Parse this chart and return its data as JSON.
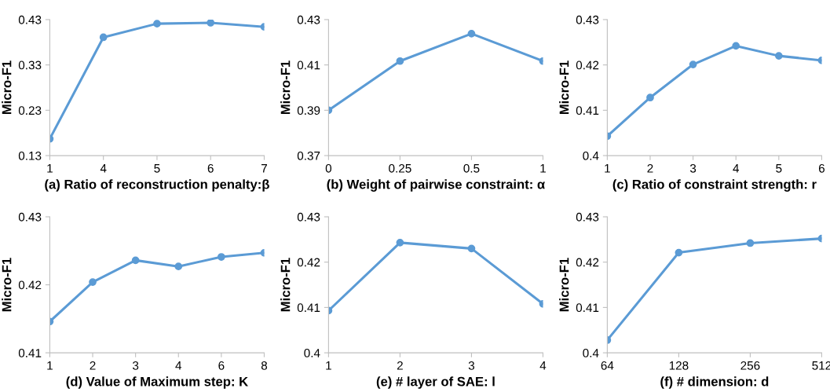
{
  "chart_data": [
    {
      "type": "line",
      "xlabel": "(a) Ratio of reconstruction penalty:β",
      "ylabel": "Micro-F1",
      "categories": [
        "1",
        "4",
        "5",
        "6",
        "7"
      ],
      "series": [
        {
          "color": "#5b9bd5",
          "values": [
            0.167,
            0.391,
            0.421,
            0.423,
            0.414
          ]
        }
      ],
      "ylim": [
        0.13,
        0.43
      ],
      "yticks": [
        0.13,
        0.23,
        0.33,
        0.43
      ],
      "marker": "circle",
      "grid": false
    },
    {
      "type": "line",
      "xlabel": "(b) Weight of pairwise constraint: α",
      "ylabel": "Micro-F1",
      "categories": [
        "0",
        "0.25",
        "0.5",
        "1"
      ],
      "series": [
        {
          "color": "#5b9bd5",
          "values": [
            0.39,
            0.4117,
            0.4238,
            0.4117
          ]
        }
      ],
      "ylim": [
        0.37,
        0.43
      ],
      "yticks": [
        0.37,
        0.39,
        0.41,
        0.43
      ],
      "marker": "circle",
      "grid": false
    },
    {
      "type": "line",
      "xlabel": "(c) Ratio of constraint strength: r",
      "ylabel": "Micro-F1",
      "categories": [
        "1",
        "2",
        "3",
        "4",
        "5",
        "6"
      ],
      "series": [
        {
          "color": "#5b9bd5",
          "values": [
            0.4043,
            0.4128,
            0.4201,
            0.4242,
            0.422,
            0.421
          ]
        }
      ],
      "ylim": [
        0.4,
        0.43
      ],
      "yticks": [
        0.4,
        0.41,
        0.42,
        0.43
      ],
      "marker": "circle",
      "grid": false
    },
    {
      "type": "line",
      "xlabel": "(d) Value of Maximum step: K",
      "ylabel": "Micro-F1",
      "categories": [
        "1",
        "2",
        "3",
        "4",
        "6",
        "8"
      ],
      "series": [
        {
          "color": "#5b9bd5",
          "values": [
            0.4146,
            0.4204,
            0.4236,
            0.4227,
            0.4241,
            0.4247
          ]
        }
      ],
      "ylim": [
        0.41,
        0.43
      ],
      "yticks": [
        0.41,
        0.42,
        0.43
      ],
      "marker": "circle",
      "grid": false
    },
    {
      "type": "line",
      "xlabel": "(e) # layer of SAE: l",
      "ylabel": "Micro-F1",
      "categories": [
        "1",
        "2",
        "3",
        "4"
      ],
      "series": [
        {
          "color": "#5b9bd5",
          "values": [
            0.4093,
            0.4243,
            0.423,
            0.4108
          ]
        }
      ],
      "ylim": [
        0.4,
        0.43
      ],
      "yticks": [
        0.4,
        0.41,
        0.42,
        0.43
      ],
      "marker": "circle",
      "grid": false
    },
    {
      "type": "line",
      "xlabel": "(f) # dimension: d",
      "ylabel": "Micro-F1",
      "categories": [
        "64",
        "128",
        "256",
        "512"
      ],
      "series": [
        {
          "color": "#5b9bd5",
          "values": [
            0.4028,
            0.4221,
            0.4242,
            0.4252
          ]
        }
      ],
      "ylim": [
        0.4,
        0.43
      ],
      "yticks": [
        0.4,
        0.41,
        0.42,
        0.43
      ],
      "marker": "circle",
      "grid": false
    }
  ]
}
